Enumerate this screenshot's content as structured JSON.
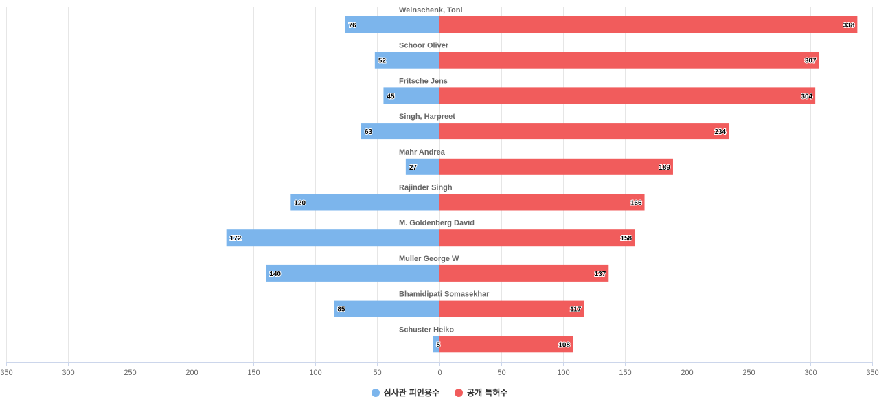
{
  "chart_data": {
    "type": "bar",
    "orientation": "horizontal",
    "diverging": true,
    "categories": [
      "Weinschenk, Toni",
      "Schoor Oliver",
      "Fritsche Jens",
      "Singh, Harpreet",
      "Mahr Andrea",
      "Rajinder Singh",
      "M. Goldenberg David",
      "Muller George W",
      "Bhamidipati Somasekhar",
      "Schuster Heiko"
    ],
    "series": [
      {
        "name": "심사관 피인용수",
        "color": "#7cb5ec",
        "side": "left",
        "values": [
          76,
          52,
          45,
          63,
          27,
          120,
          172,
          140,
          85,
          5
        ]
      },
      {
        "name": "공개 특허수",
        "color": "#f15c5c",
        "side": "right",
        "values": [
          338,
          307,
          304,
          234,
          189,
          166,
          158,
          137,
          117,
          108
        ]
      }
    ],
    "xlim": [
      -350,
      350
    ],
    "xticks": [
      "350",
      "300",
      "250",
      "200",
      "150",
      "100",
      "50",
      "0",
      "50",
      "100",
      "150",
      "200",
      "250",
      "300",
      "350"
    ],
    "grid": true,
    "legend_position": "bottom-center"
  }
}
